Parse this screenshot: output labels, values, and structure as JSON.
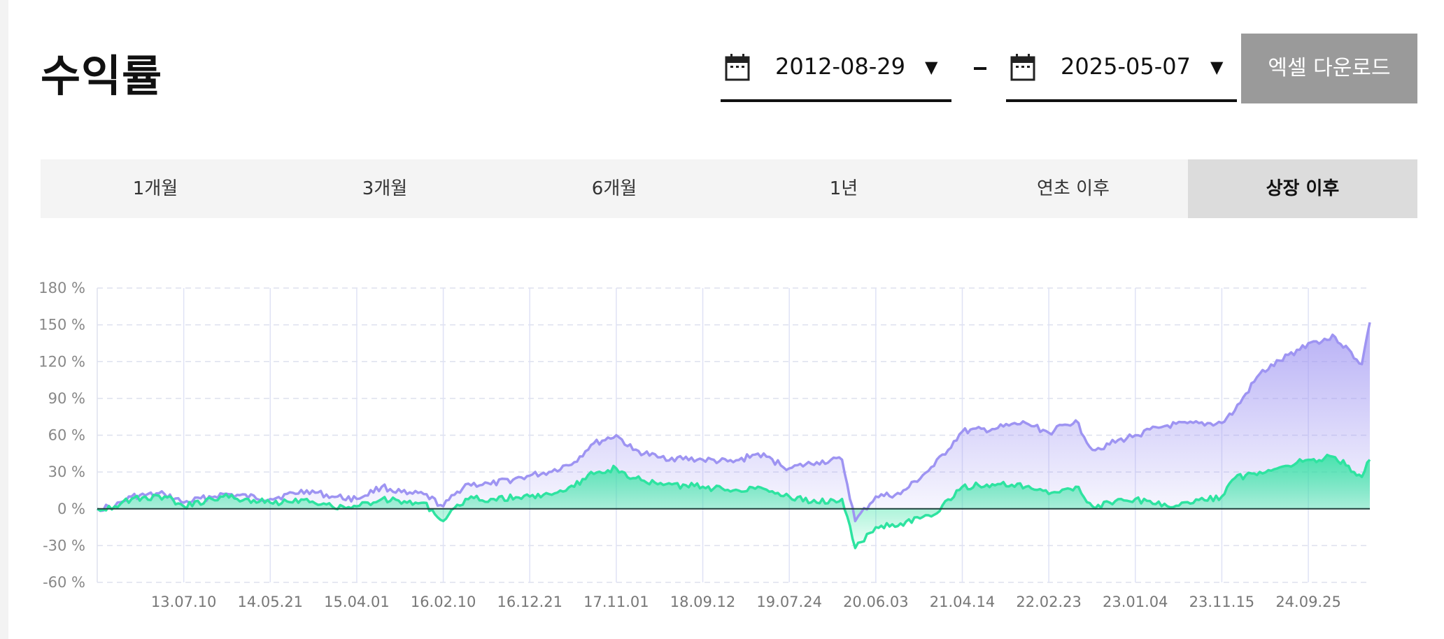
{
  "header": {
    "title": "수익률",
    "start_date": "2012-08-29",
    "end_date": "2025-05-07",
    "excel_button": "엑셀 다운로드"
  },
  "tabs": [
    {
      "label": "1개월",
      "active": false
    },
    {
      "label": "3개월",
      "active": false
    },
    {
      "label": "6개월",
      "active": false
    },
    {
      "label": "1년",
      "active": false
    },
    {
      "label": "연초 이후",
      "active": false
    },
    {
      "label": "상장 이후",
      "active": true
    }
  ],
  "chart_data": {
    "type": "area",
    "x_range": [
      "2012-08-29",
      "2025-05-07"
    ],
    "x_ticks": [
      "13.07.10",
      "14.05.21",
      "15.04.01",
      "16.02.10",
      "16.12.21",
      "17.11.01",
      "18.09.12",
      "19.07.24",
      "20.06.03",
      "21.04.14",
      "22.02.23",
      "23.01.04",
      "23.11.15",
      "24.09.25"
    ],
    "y_ticks": [
      "180 %",
      "150 %",
      "120 %",
      "90 %",
      "60 %",
      "30 %",
      "0 %",
      "-30 %",
      "-60 %"
    ],
    "ylim": [
      -60,
      180
    ],
    "grid": true,
    "colors": {
      "series_1": "#9e94f2",
      "series_2": "#2ee3a0",
      "zero_line": "#1f3e3b"
    },
    "series": [
      {
        "values": [
          [
            "2012-08-29",
            0
          ],
          [
            "2012-11-01",
            2
          ],
          [
            "2013-01-01",
            10
          ],
          [
            "2013-05-01",
            12
          ],
          [
            "2013-07-10",
            5
          ],
          [
            "2013-12-01",
            12
          ],
          [
            "2014-05-21",
            8
          ],
          [
            "2014-10-01",
            15
          ],
          [
            "2015-01-01",
            10
          ],
          [
            "2015-04-01",
            8
          ],
          [
            "2015-07-01",
            18
          ],
          [
            "2015-10-01",
            12
          ],
          [
            "2015-12-01",
            12
          ],
          [
            "2016-02-10",
            2
          ],
          [
            "2016-05-01",
            20
          ],
          [
            "2016-08-01",
            20
          ],
          [
            "2016-12-21",
            27
          ],
          [
            "2017-03-01",
            30
          ],
          [
            "2017-06-01",
            38
          ],
          [
            "2017-08-01",
            52
          ],
          [
            "2017-11-01",
            60
          ],
          [
            "2018-01-01",
            48
          ],
          [
            "2018-04-01",
            42
          ],
          [
            "2018-09-12",
            40
          ],
          [
            "2019-01-01",
            38
          ],
          [
            "2019-04-01",
            45
          ],
          [
            "2019-07-24",
            33
          ],
          [
            "2019-11-01",
            38
          ],
          [
            "2020-02-01",
            40
          ],
          [
            "2020-03-20",
            -10
          ],
          [
            "2020-06-03",
            10
          ],
          [
            "2020-09-01",
            12
          ],
          [
            "2021-01-01",
            35
          ],
          [
            "2021-04-14",
            63
          ],
          [
            "2021-08-01",
            65
          ],
          [
            "2021-12-01",
            70
          ],
          [
            "2022-02-23",
            62
          ],
          [
            "2022-06-01",
            72
          ],
          [
            "2022-08-01",
            48
          ],
          [
            "2023-01-04",
            60
          ],
          [
            "2023-05-01",
            68
          ],
          [
            "2023-11-15",
            70
          ],
          [
            "2024-01-01",
            80
          ],
          [
            "2024-04-01",
            110
          ],
          [
            "2024-09-25",
            135
          ],
          [
            "2025-01-01",
            140
          ],
          [
            "2025-04-08",
            118
          ],
          [
            "2025-05-07",
            152
          ]
        ]
      },
      {
        "values": [
          [
            "2012-08-29",
            0
          ],
          [
            "2012-11-01",
            2
          ],
          [
            "2013-01-01",
            8
          ],
          [
            "2013-05-01",
            10
          ],
          [
            "2013-07-10",
            2
          ],
          [
            "2013-12-01",
            10
          ],
          [
            "2014-05-21",
            5
          ],
          [
            "2014-10-01",
            8
          ],
          [
            "2015-01-01",
            2
          ],
          [
            "2015-04-01",
            2
          ],
          [
            "2015-07-01",
            8
          ],
          [
            "2015-10-01",
            5
          ],
          [
            "2015-12-01",
            5
          ],
          [
            "2016-02-10",
            -10
          ],
          [
            "2016-05-01",
            8
          ],
          [
            "2016-08-01",
            8
          ],
          [
            "2016-12-21",
            10
          ],
          [
            "2017-03-01",
            12
          ],
          [
            "2017-06-01",
            18
          ],
          [
            "2017-08-01",
            30
          ],
          [
            "2017-11-01",
            33
          ],
          [
            "2018-01-01",
            25
          ],
          [
            "2018-04-01",
            20
          ],
          [
            "2018-09-12",
            18
          ],
          [
            "2019-01-01",
            15
          ],
          [
            "2019-04-01",
            18
          ],
          [
            "2019-07-24",
            10
          ],
          [
            "2019-11-01",
            5
          ],
          [
            "2020-02-01",
            8
          ],
          [
            "2020-03-20",
            -32
          ],
          [
            "2020-06-03",
            -15
          ],
          [
            "2020-09-01",
            -12
          ],
          [
            "2021-01-01",
            -5
          ],
          [
            "2021-04-14",
            18
          ],
          [
            "2021-08-01",
            20
          ],
          [
            "2021-12-01",
            18
          ],
          [
            "2022-02-23",
            12
          ],
          [
            "2022-06-01",
            18
          ],
          [
            "2022-08-01",
            2
          ],
          [
            "2023-01-04",
            8
          ],
          [
            "2023-05-01",
            2
          ],
          [
            "2023-11-15",
            10
          ],
          [
            "2024-01-01",
            25
          ],
          [
            "2024-04-01",
            30
          ],
          [
            "2024-09-25",
            40
          ],
          [
            "2025-01-01",
            42
          ],
          [
            "2025-04-08",
            26
          ],
          [
            "2025-05-07",
            40
          ]
        ]
      }
    ]
  }
}
